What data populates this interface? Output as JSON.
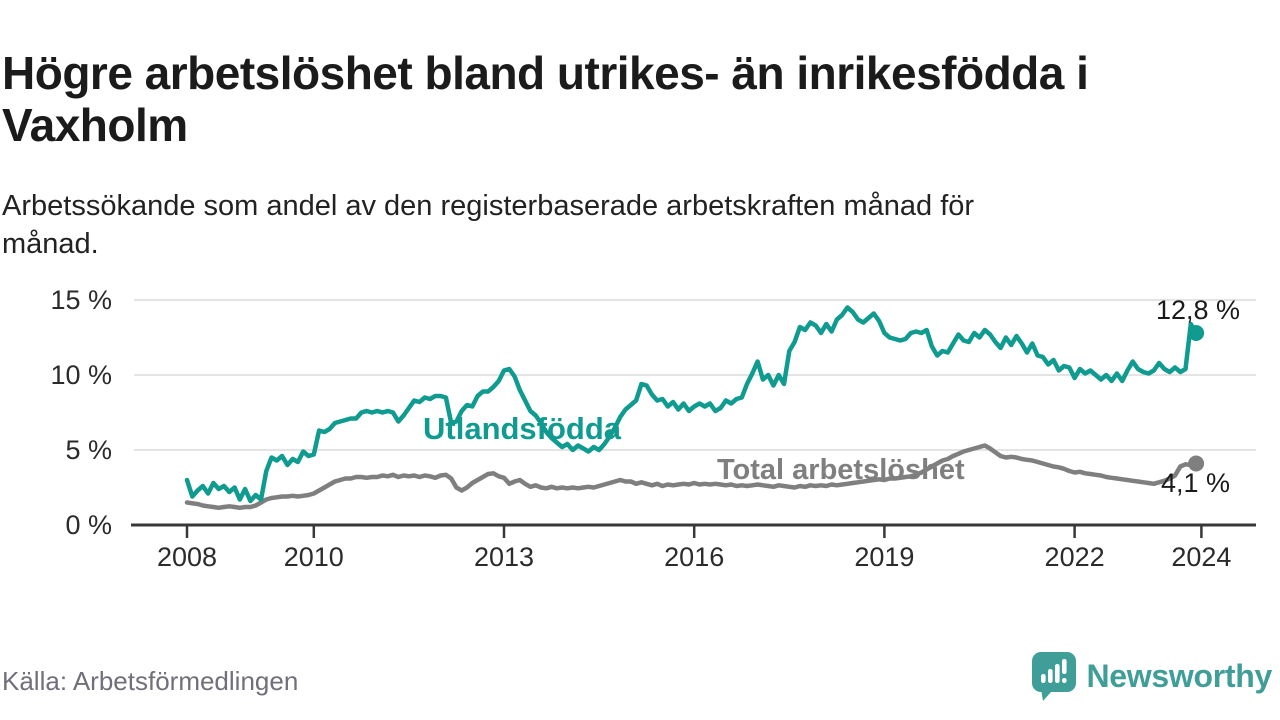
{
  "header": {
    "title_lines": [
      "Högre arbetslöshet bland utrikes- än inrikesfödda i",
      "Vaxholm"
    ],
    "subtitle_lines": [
      "Arbetssökande som andel av den registerbaserade arbetskraften månad för",
      "månad."
    ]
  },
  "chart_data": {
    "type": "line",
    "title": "Högre arbetslöshet bland utrikes- än inrikesfödda i Vaxholm",
    "subtitle": "Arbetssökande som andel av den registerbaserade arbetskraften månad för månad.",
    "unit": "%",
    "x_start_year": 2008,
    "points_per_year": 12,
    "ylim": [
      0,
      15
    ],
    "grid": "horizontal",
    "y_ticks": [
      {
        "value": 0,
        "label": "0 %"
      },
      {
        "value": 5,
        "label": "5 %"
      },
      {
        "value": 10,
        "label": "10 %"
      },
      {
        "value": 15,
        "label": "15 %"
      }
    ],
    "x_ticks": [
      {
        "value": 2008,
        "label": "2008"
      },
      {
        "value": 2010,
        "label": "2010"
      },
      {
        "value": 2013,
        "label": "2013"
      },
      {
        "value": 2016,
        "label": "2016"
      },
      {
        "value": 2019,
        "label": "2019"
      },
      {
        "value": 2022,
        "label": "2022"
      },
      {
        "value": 2024,
        "label": "2024"
      }
    ],
    "series": [
      {
        "name": "Utlandsfödda",
        "color": "#0f9b8f",
        "end_label": "12,8 %",
        "end_value": 12.8,
        "values": [
          3.0,
          1.9,
          2.3,
          2.6,
          2.1,
          2.8,
          2.4,
          2.6,
          2.2,
          2.5,
          1.7,
          2.4,
          1.6,
          2.0,
          1.7,
          3.6,
          4.5,
          4.3,
          4.6,
          4.0,
          4.4,
          4.2,
          4.9,
          4.6,
          4.7,
          6.3,
          6.2,
          6.4,
          6.8,
          6.9,
          7.0,
          7.1,
          7.1,
          7.5,
          7.6,
          7.5,
          7.6,
          7.5,
          7.6,
          7.5,
          6.9,
          7.3,
          7.8,
          8.3,
          8.2,
          8.5,
          8.4,
          8.6,
          8.6,
          8.5,
          6.8,
          6.9,
          7.6,
          8.0,
          7.9,
          8.6,
          8.9,
          8.9,
          9.2,
          9.6,
          10.3,
          10.4,
          9.9,
          9.0,
          8.3,
          7.6,
          7.3,
          6.8,
          6.2,
          5.8,
          5.5,
          5.2,
          5.4,
          5.0,
          5.3,
          5.1,
          4.9,
          5.2,
          5.0,
          5.4,
          5.9,
          6.5,
          7.2,
          7.7,
          8.0,
          8.3,
          9.4,
          9.3,
          8.7,
          8.3,
          8.4,
          7.9,
          8.2,
          7.7,
          8.1,
          7.6,
          7.9,
          8.1,
          7.9,
          8.1,
          7.6,
          7.8,
          8.3,
          8.1,
          8.4,
          8.5,
          9.4,
          10.1,
          10.9,
          9.7,
          10.0,
          9.3,
          10.0,
          9.4,
          11.6,
          12.2,
          13.2,
          13.0,
          13.5,
          13.3,
          12.8,
          13.4,
          12.9,
          13.7,
          14.0,
          14.5,
          14.2,
          13.7,
          13.5,
          13.8,
          14.1,
          13.6,
          12.8,
          12.5,
          12.4,
          12.3,
          12.4,
          12.8,
          12.9,
          12.8,
          13.0,
          11.9,
          11.3,
          11.6,
          11.5,
          12.1,
          12.7,
          12.3,
          12.2,
          12.8,
          12.5,
          13.0,
          12.7,
          12.2,
          11.8,
          12.5,
          12.0,
          12.6,
          12.1,
          11.5,
          12.1,
          11.3,
          11.2,
          10.7,
          11.0,
          10.3,
          10.6,
          10.5,
          9.8,
          10.4,
          10.1,
          10.3,
          10.0,
          9.7,
          10.0,
          9.6,
          10.1,
          9.6,
          10.3,
          10.9,
          10.4,
          10.2,
          10.1,
          10.3,
          10.8,
          10.4,
          10.2,
          10.5,
          10.2,
          10.4,
          13.4,
          12.8
        ]
      },
      {
        "name": "Total arbetslöshet",
        "color": "#7f7f7f",
        "end_label": "4,1 %",
        "end_value": 4.1,
        "values": [
          1.5,
          1.45,
          1.4,
          1.3,
          1.25,
          1.2,
          1.15,
          1.2,
          1.25,
          1.2,
          1.15,
          1.2,
          1.2,
          1.3,
          1.5,
          1.7,
          1.8,
          1.85,
          1.9,
          1.9,
          1.95,
          1.9,
          1.95,
          2.0,
          2.1,
          2.3,
          2.5,
          2.7,
          2.9,
          3.0,
          3.1,
          3.1,
          3.2,
          3.2,
          3.15,
          3.2,
          3.2,
          3.3,
          3.25,
          3.35,
          3.2,
          3.3,
          3.25,
          3.3,
          3.2,
          3.3,
          3.25,
          3.15,
          3.3,
          3.35,
          3.1,
          2.5,
          2.3,
          2.5,
          2.8,
          3.0,
          3.2,
          3.4,
          3.45,
          3.25,
          3.15,
          2.75,
          2.9,
          3.0,
          2.75,
          2.55,
          2.65,
          2.5,
          2.45,
          2.55,
          2.45,
          2.5,
          2.45,
          2.5,
          2.45,
          2.5,
          2.55,
          2.5,
          2.6,
          2.7,
          2.8,
          2.9,
          3.0,
          2.9,
          2.9,
          2.75,
          2.85,
          2.75,
          2.65,
          2.75,
          2.6,
          2.7,
          2.65,
          2.7,
          2.75,
          2.7,
          2.8,
          2.7,
          2.75,
          2.7,
          2.75,
          2.7,
          2.65,
          2.7,
          2.6,
          2.65,
          2.6,
          2.65,
          2.7,
          2.65,
          2.6,
          2.55,
          2.65,
          2.6,
          2.55,
          2.5,
          2.6,
          2.55,
          2.65,
          2.6,
          2.65,
          2.6,
          2.7,
          2.65,
          2.7,
          2.75,
          2.8,
          2.85,
          2.9,
          2.95,
          3.0,
          3.05,
          3.0,
          3.1,
          3.1,
          3.15,
          3.2,
          3.25,
          3.35,
          3.5,
          3.7,
          3.9,
          4.1,
          4.3,
          4.4,
          4.6,
          4.75,
          4.9,
          5.0,
          5.1,
          5.2,
          5.3,
          5.1,
          4.85,
          4.6,
          4.5,
          4.55,
          4.5,
          4.4,
          4.35,
          4.3,
          4.2,
          4.1,
          4.0,
          3.9,
          3.85,
          3.75,
          3.6,
          3.5,
          3.55,
          3.45,
          3.4,
          3.35,
          3.3,
          3.2,
          3.15,
          3.1,
          3.05,
          3.0,
          2.95,
          2.9,
          2.85,
          2.8,
          2.75,
          2.85,
          2.95,
          3.1,
          3.3,
          3.9,
          4.05,
          4.0,
          4.1
        ]
      }
    ]
  },
  "footer": {
    "source": "Källa: Arbetsförmedlingen",
    "logo_text": "Newsworthy"
  },
  "colors": {
    "accent_teal": "#0f9b8f",
    "series_gray": "#7f7f7f",
    "logo_teal": "#3f9e98",
    "grid": "#dcdcdc",
    "axis": "#38383a",
    "text_dark": "#1b1b1b",
    "text_muted": "#70707a"
  }
}
